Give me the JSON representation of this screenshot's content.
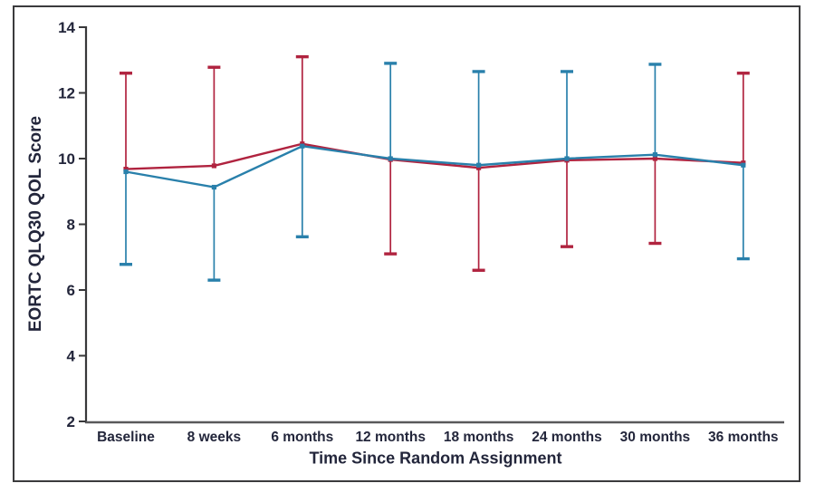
{
  "figure": {
    "kind": "clinical-trial-qol-figure",
    "border_present": true
  },
  "colors": {
    "background": "#ffffff",
    "border": "#3b3b3d",
    "y_axis": "#38383a",
    "x_axis": "#59595b",
    "tick": "#38383a",
    "text": "#23263b",
    "series_red": "#b0233f",
    "series_blue": "#2980ab"
  },
  "chart_data": {
    "type": "line",
    "title": "",
    "xlabel": "Time Since Random Assignment",
    "ylabel": "EORTC QLQ30 QOL Score",
    "categories": [
      "Baseline",
      "8 weeks",
      "6 months",
      "12 months",
      "18 months",
      "24 months",
      "30 months",
      "36 months"
    ],
    "ylim": [
      2,
      14
    ],
    "y_ticks": [
      2,
      4,
      6,
      8,
      10,
      12,
      14
    ],
    "grid": false,
    "legend": "none",
    "error_bars": "one-sided whiskers with caps; red arm upward and blue arm downward at Baseline/8 weeks/6 months/36 months, reversed at 12/18/24/30 months",
    "marker": "small filled square",
    "series": [
      {
        "name": "red-arm",
        "color": "#b0233f",
        "values": [
          9.68,
          9.78,
          10.45,
          9.97,
          9.72,
          9.95,
          10.0,
          9.87
        ],
        "err_upper": [
          12.6,
          12.78,
          13.1,
          null,
          null,
          null,
          null,
          12.6
        ],
        "err_lower": [
          null,
          null,
          null,
          7.1,
          6.6,
          7.32,
          7.42,
          null
        ]
      },
      {
        "name": "blue-arm",
        "color": "#2980ab",
        "values": [
          9.6,
          9.13,
          10.38,
          10.0,
          9.8,
          10.0,
          10.12,
          9.8
        ],
        "err_upper": [
          null,
          null,
          null,
          12.9,
          12.65,
          12.65,
          12.87,
          null
        ],
        "err_lower": [
          6.78,
          6.3,
          7.62,
          null,
          null,
          null,
          null,
          6.95
        ]
      }
    ]
  }
}
